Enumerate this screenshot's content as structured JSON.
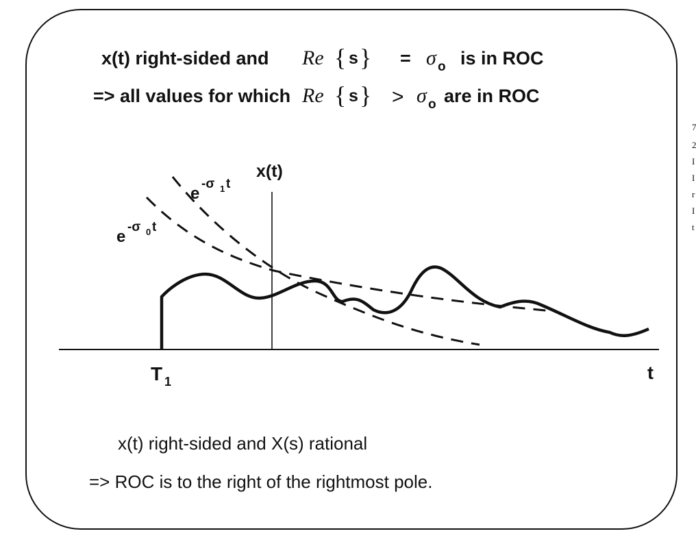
{
  "top": {
    "line1": {
      "a": "x(t) right-sided and",
      "re": "Re",
      "lb": "{",
      "s": "s",
      "rb": "}",
      "op": "=",
      "sigma": "σ",
      "sub": "o",
      "tail": "is  in ROC"
    },
    "line2": {
      "a": "=> all values for which",
      "re": "Re",
      "lb": "{",
      "s": "s",
      "rb": "}",
      "op": ">",
      "sigma": "σ",
      "sub": "o",
      "tail": "are in ROC"
    }
  },
  "graph": {
    "y_label": "x(t)",
    "x_label": "t",
    "t1_label": "T",
    "t1_sub": "1",
    "curve1": {
      "base": "e",
      "exp": "-σ",
      "sub": "1",
      "t": "t"
    },
    "curve0": {
      "base": "e",
      "exp": "-σ",
      "sub": "0",
      "t": "t"
    }
  },
  "bottom": {
    "line1": "x(t) right-sided and X(s) rational",
    "line2": "=> ROC is to the right of the rightmost pole."
  },
  "side_fragments": [
    "7",
    "2",
    "I",
    "I",
    "r",
    "I",
    "t"
  ]
}
